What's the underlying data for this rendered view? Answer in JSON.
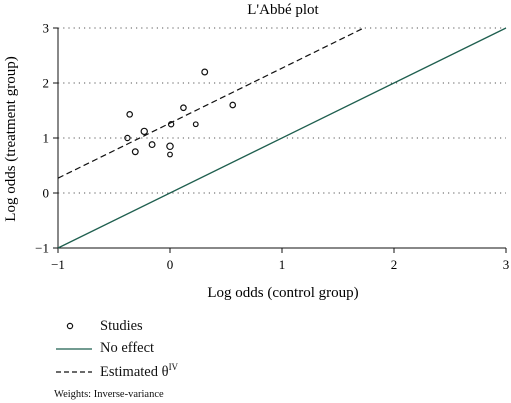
{
  "chart_data": {
    "type": "scatter",
    "title": "L'Abbé plot",
    "xlabel": "Log odds (control group)",
    "ylabel": "Log odds (treatment group)",
    "xlim": [
      -1,
      3
    ],
    "ylim": [
      -1,
      3
    ],
    "xticks": [
      -1,
      0,
      1,
      2,
      3
    ],
    "yticks": [
      -1,
      0,
      1,
      2,
      3
    ],
    "grid": "horizontal dotted",
    "series": [
      {
        "name": "Studies",
        "points": [
          {
            "x": -0.38,
            "y": 1.0,
            "w": 1.0
          },
          {
            "x": -0.36,
            "y": 1.43,
            "w": 1.1
          },
          {
            "x": -0.31,
            "y": 0.75,
            "w": 1.2
          },
          {
            "x": -0.23,
            "y": 1.12,
            "w": 1.4
          },
          {
            "x": -0.16,
            "y": 0.88,
            "w": 1.2
          },
          {
            "x": 0.0,
            "y": 0.85,
            "w": 1.5
          },
          {
            "x": 0.0,
            "y": 0.7,
            "w": 0.8
          },
          {
            "x": 0.01,
            "y": 1.25,
            "w": 1.0
          },
          {
            "x": 0.12,
            "y": 1.55,
            "w": 1.1
          },
          {
            "x": 0.23,
            "y": 1.25,
            "w": 0.8
          },
          {
            "x": 0.31,
            "y": 2.2,
            "w": 1.2
          },
          {
            "x": 0.56,
            "y": 1.6,
            "w": 1.1
          }
        ]
      },
      {
        "name": "No effect",
        "line": {
          "intercept": 0,
          "slope": 1
        }
      },
      {
        "name": "Estimated θ",
        "line": {
          "intercept": 1.27,
          "slope": 1
        }
      }
    ],
    "legend": {
      "placement": "bottom-left",
      "studies": "Studies",
      "no_effect": "No effect",
      "estimated": "Estimated θ",
      "estimated_sup": "IV"
    },
    "note": "Weights: Inverse-variance"
  },
  "colors": {
    "no_effect": "#1f5f4f",
    "estimated": "#111111",
    "grid": "#555555",
    "points": "#111111"
  }
}
